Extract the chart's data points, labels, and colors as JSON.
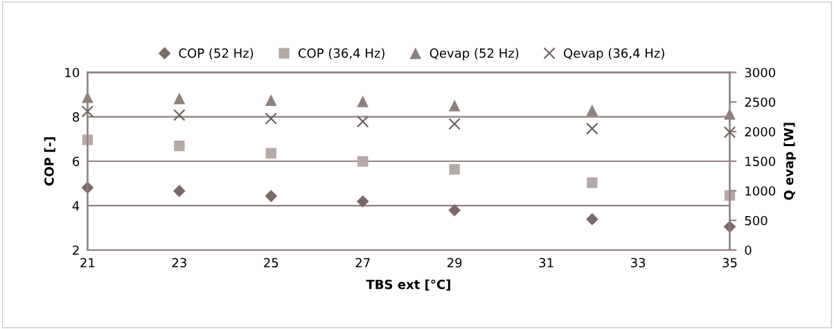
{
  "chart_data": {
    "type": "scatter",
    "xlabel": "TBS ext [°C]",
    "ylabel": "COP [-]",
    "y2label": "Q evap [W]",
    "x": [
      21,
      23,
      25,
      27,
      29,
      32,
      35
    ],
    "xlim": [
      21,
      35
    ],
    "xticks": [
      21,
      23,
      25,
      27,
      29,
      31,
      33,
      35
    ],
    "ylim": [
      2,
      10
    ],
    "yticks": [
      2,
      4,
      6,
      8,
      10
    ],
    "y2lim": [
      0,
      3000
    ],
    "y2ticks": [
      0,
      500,
      1000,
      1500,
      2000,
      2500,
      3000
    ],
    "grid": "y",
    "legend": "top",
    "series": [
      {
        "name": "COP (52 Hz)",
        "color": "#7a6a67",
        "marker": "diamond",
        "values": [
          4.81,
          4.66,
          4.43,
          4.19,
          3.79,
          3.39,
          3.05
        ]
      },
      {
        "name": "COP (36,4 Hz)",
        "color": "#b5a9a5",
        "marker": "square",
        "values": [
          6.96,
          6.69,
          6.36,
          5.99,
          5.63,
          5.03,
          4.46
        ]
      },
      {
        "name": "Qevap (52 Hz)",
        "color": "#8f807c",
        "marker": "triangle",
        "axis": "y2",
        "values": [
          2580,
          2560,
          2530,
          2510,
          2440,
          2360,
          2300
        ]
      },
      {
        "name": "Qevap (36,4 Hz)",
        "color": "#6f615e",
        "marker": "cross",
        "axis": "y2",
        "values": [
          2340,
          2280,
          2220,
          2170,
          2130,
          2050,
          1990
        ]
      }
    ]
  }
}
